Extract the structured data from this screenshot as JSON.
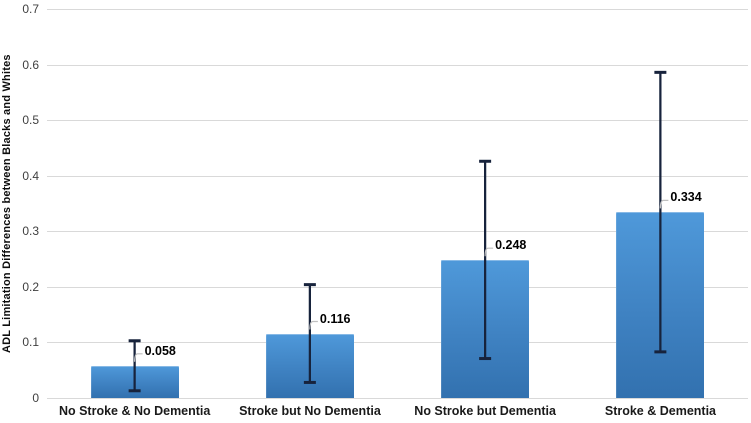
{
  "chart_data": {
    "type": "bar",
    "title": "",
    "xlabel": "",
    "ylabel": "ADL Limitation Differences between Blacks and Whites",
    "ylim": [
      0,
      0.7
    ],
    "yticks": [
      "0",
      "0.1",
      "0.2",
      "0.3",
      "0.4",
      "0.5",
      "0.6",
      "0.7"
    ],
    "grid": true,
    "legend_position": "none",
    "categories": [
      "No Stroke & No Dementia",
      "Stroke but No Dementia",
      "No Stroke but Dementia",
      "Stroke & Dementia"
    ],
    "values": [
      0.058,
      0.116,
      0.248,
      0.334
    ],
    "value_labels": [
      "0.058",
      "0.116",
      "0.248",
      "0.334"
    ],
    "error_low": [
      0.013,
      0.028,
      0.071,
      0.083
    ],
    "error_high": [
      0.103,
      0.204,
      0.426,
      0.586
    ],
    "colors": {
      "bar_top": "#4f99da",
      "bar_mid": "#3f82c2",
      "bar_bottom": "#3271af",
      "error_bar": "#17233c",
      "gridline": "#d9d9d9",
      "leader_line": "#bfbfbf",
      "tick_text": "#3f3f3f",
      "label_text": "#000000",
      "background": "#ffffff"
    }
  }
}
